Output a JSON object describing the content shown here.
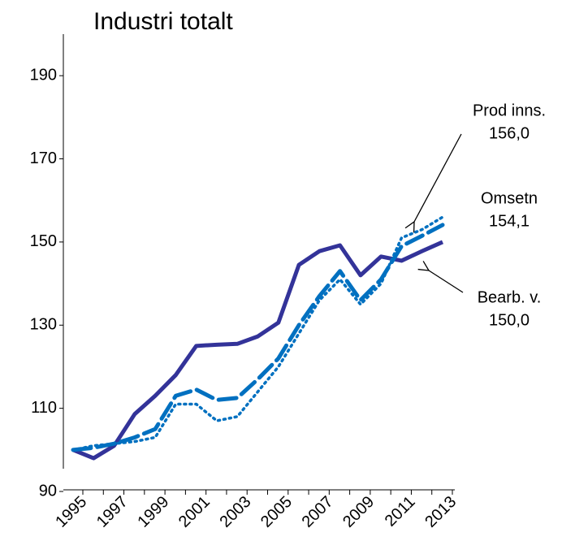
{
  "chart_data": {
    "type": "line",
    "title": "Industri totalt",
    "categories": [
      "1995",
      null,
      "1997",
      null,
      "1999",
      null,
      "2001",
      null,
      "2003",
      null,
      "2005",
      null,
      "2007",
      null,
      "2009",
      null,
      "2011",
      null,
      "2013"
    ],
    "series": [
      {
        "name": "Bearb. v.",
        "color": "#333399",
        "style": "solid",
        "values": [
          100,
          98,
          101,
          108.6,
          113,
          118,
          125,
          125.3,
          125.5,
          127.3,
          130.6,
          144.5,
          147.8,
          149.2,
          142,
          146.5,
          145.5,
          147.8,
          150
        ]
      },
      {
        "name": "Omsetn",
        "color": "#0070c0",
        "style": "dashed",
        "values": [
          100,
          100.5,
          101.5,
          103,
          105,
          113,
          114.5,
          112,
          112.5,
          117,
          122,
          130,
          137,
          143,
          136,
          141,
          149,
          151.5,
          154.1
        ]
      },
      {
        "name": "Prod inns.",
        "color": "#0070c0",
        "style": "dotted",
        "values": [
          100,
          101,
          101.5,
          102,
          103,
          111,
          111,
          107,
          108,
          114,
          120,
          128,
          136,
          141,
          135,
          140,
          151,
          153,
          156
        ]
      }
    ],
    "annotations": [
      [
        "Prod inns.",
        "156,0"
      ],
      [
        "Omsetn",
        "154,1"
      ],
      [
        "Bearb. v.",
        "150,0"
      ]
    ],
    "ylim": [
      90,
      200
    ],
    "yticks": [
      90,
      110,
      130,
      150,
      170,
      190
    ],
    "grid": false
  }
}
